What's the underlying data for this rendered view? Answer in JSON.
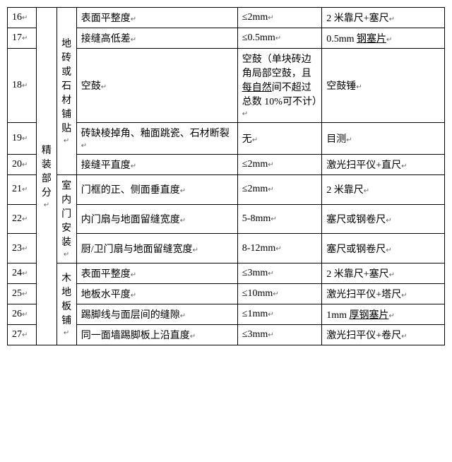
{
  "marker": "↵",
  "section_label": "精装部分",
  "groups": [
    {
      "category": "地砖或石材铺贴",
      "rows": [
        {
          "idx": "16",
          "item": "表面平整度",
          "std": "≤2mm",
          "tool": "2 米靠尺+塞尺"
        },
        {
          "idx": "17",
          "item": "接缝高低差",
          "std": "≤0.5mm",
          "tool_html": "0.5mm <span class='u'>钢塞片</span>"
        },
        {
          "idx": "18",
          "item": "空鼓",
          "std_html": "空鼓（单块砖边角局部空鼓，且<span class='u'>每自然</span>间不超过总数 10%可不计）",
          "tool": "空鼓锤"
        },
        {
          "idx": "19",
          "item": "砖缺棱掉角、釉面跳瓷、石材断裂",
          "std": "无",
          "tool": "目测"
        },
        {
          "idx": "20",
          "item": "接缝平直度",
          "std": "≤2mm",
          "tool": "激光扫平仪+直尺"
        }
      ]
    },
    {
      "category": "室内门安装",
      "rows": [
        {
          "idx": "21",
          "item": "门框的正、侧面垂直度",
          "std": "≤2mm",
          "tool": "2 米靠尺"
        },
        {
          "idx": "22",
          "item": "内门扇与地面留缝宽度",
          "std": "5-8mm",
          "tool": "塞尺或钢卷尺"
        },
        {
          "idx": "23",
          "item": "厨/卫门扇与地面留缝宽度",
          "std": "8-12mm",
          "tool": "塞尺或钢卷尺"
        }
      ]
    },
    {
      "category": "木地板铺",
      "rows": [
        {
          "idx": "24",
          "item": "表面平整度",
          "std": "≤3mm",
          "tool": "2 米靠尺+塞尺"
        },
        {
          "idx": "25",
          "item": "地板水平度",
          "std": "≤10mm",
          "tool": "激光扫平仪+塔尺"
        },
        {
          "idx": "26",
          "item": "踢脚线与面层间的缝隙",
          "std": "≤1mm",
          "tool_html": "1mm <span class='u'>厚钢塞片</span>"
        },
        {
          "idx": "27",
          "item": "同一面墙踢脚板上沿直度",
          "std": "≤3mm",
          "tool": "激光扫平仪+卷尺"
        }
      ]
    }
  ]
}
